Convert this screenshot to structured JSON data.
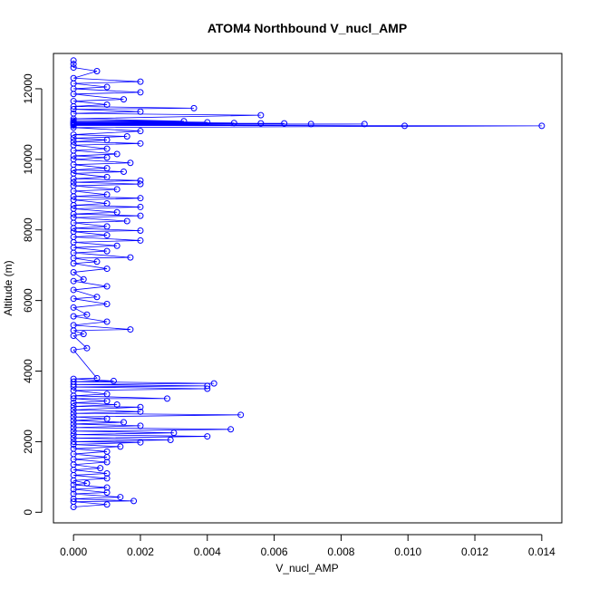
{
  "chart_data": {
    "type": "scatter",
    "title": "ATOM4 Northbound V_nucl_AMP",
    "xlabel": "V_nucl_AMP",
    "ylabel": "Altitude (m)",
    "xlim": [
      -0.0006,
      0.0146
    ],
    "ylim": [
      -300,
      13000
    ],
    "x_ticks": [
      0.0,
      0.002,
      0.004,
      0.006,
      0.008,
      0.01,
      0.012,
      0.014
    ],
    "x_tick_labels": [
      "0.000",
      "0.002",
      "0.004",
      "0.006",
      "0.008",
      "0.010",
      "0.012",
      "0.014"
    ],
    "y_ticks": [
      0,
      2000,
      4000,
      6000,
      8000,
      10000,
      12000
    ],
    "y_tick_labels": [
      "0",
      "2000",
      "4000",
      "6000",
      "8000",
      "10000",
      "12000"
    ],
    "grid": false,
    "legend": "none",
    "marker": "open-circle",
    "connected": true,
    "color": "#0000ff",
    "series": [
      {
        "points": [
          [
            0.0,
            150
          ],
          [
            0.001,
            220
          ],
          [
            0.0,
            300
          ],
          [
            0.0018,
            320
          ],
          [
            0.0,
            380
          ],
          [
            0.0014,
            430
          ],
          [
            0.0,
            520
          ],
          [
            0.001,
            560
          ],
          [
            0.0,
            650
          ],
          [
            0.001,
            700
          ],
          [
            0.0,
            780
          ],
          [
            0.0004,
            820
          ],
          [
            0.0,
            900
          ],
          [
            0.001,
            960
          ],
          [
            0.0,
            1050
          ],
          [
            0.001,
            1100
          ],
          [
            0.0,
            1200
          ],
          [
            0.0008,
            1250
          ],
          [
            0.0,
            1350
          ],
          [
            0.001,
            1420
          ],
          [
            0.0,
            1500
          ],
          [
            0.001,
            1560
          ],
          [
            0.0,
            1650
          ],
          [
            0.001,
            1720
          ],
          [
            0.0,
            1800
          ],
          [
            0.0014,
            1860
          ],
          [
            0.0,
            1920
          ],
          [
            0.002,
            1980
          ],
          [
            0.0,
            2000
          ],
          [
            0.0029,
            2050
          ],
          [
            0.0,
            2100
          ],
          [
            0.004,
            2150
          ],
          [
            0.0,
            2200
          ],
          [
            0.003,
            2250
          ],
          [
            0.0,
            2300
          ],
          [
            0.0047,
            2350
          ],
          [
            0.0,
            2400
          ],
          [
            0.002,
            2450
          ],
          [
            0.0,
            2500
          ],
          [
            0.0015,
            2550
          ],
          [
            0.0,
            2600
          ],
          [
            0.001,
            2650
          ],
          [
            0.0,
            2700
          ],
          [
            0.005,
            2760
          ],
          [
            0.0,
            2800
          ],
          [
            0.002,
            2850
          ],
          [
            0.0,
            2900
          ],
          [
            0.002,
            2980
          ],
          [
            0.0,
            3000
          ],
          [
            0.0013,
            3050
          ],
          [
            0.0,
            3100
          ],
          [
            0.001,
            3150
          ],
          [
            0.0,
            3220
          ],
          [
            0.0028,
            3220
          ],
          [
            0.0,
            3300
          ],
          [
            0.001,
            3350
          ],
          [
            0.0,
            3450
          ],
          [
            0.004,
            3500
          ],
          [
            0.0,
            3550
          ],
          [
            0.004,
            3580
          ],
          [
            0.0,
            3620
          ],
          [
            0.0042,
            3650
          ],
          [
            0.0,
            3700
          ],
          [
            0.0012,
            3720
          ],
          [
            0.0,
            3780
          ],
          [
            0.0007,
            3800
          ],
          [
            0.0,
            4600
          ],
          [
            0.0004,
            4650
          ],
          [
            0.0,
            5000
          ],
          [
            0.0003,
            5050
          ],
          [
            0.0,
            5150
          ],
          [
            0.0017,
            5180
          ],
          [
            0.0,
            5300
          ],
          [
            0.001,
            5400
          ],
          [
            0.0,
            5550
          ],
          [
            0.0004,
            5600
          ],
          [
            0.0,
            5800
          ],
          [
            0.001,
            5900
          ],
          [
            0.0,
            6050
          ],
          [
            0.0007,
            6100
          ],
          [
            0.0,
            6300
          ],
          [
            0.001,
            6400
          ],
          [
            0.0,
            6550
          ],
          [
            0.0003,
            6600
          ],
          [
            0.0,
            6800
          ],
          [
            0.001,
            6900
          ],
          [
            0.0,
            7050
          ],
          [
            0.0007,
            7100
          ],
          [
            0.0,
            7200
          ],
          [
            0.0017,
            7220
          ],
          [
            0.0,
            7350
          ],
          [
            0.001,
            7400
          ],
          [
            0.0,
            7500
          ],
          [
            0.0013,
            7550
          ],
          [
            0.0,
            7650
          ],
          [
            0.002,
            7700
          ],
          [
            0.0,
            7800
          ],
          [
            0.001,
            7850
          ],
          [
            0.0,
            7950
          ],
          [
            0.002,
            7980
          ],
          [
            0.0,
            8050
          ],
          [
            0.001,
            8100
          ],
          [
            0.0,
            8200
          ],
          [
            0.0016,
            8250
          ],
          [
            0.0,
            8350
          ],
          [
            0.002,
            8400
          ],
          [
            0.0,
            8450
          ],
          [
            0.0013,
            8500
          ],
          [
            0.0,
            8600
          ],
          [
            0.002,
            8650
          ],
          [
            0.0,
            8700
          ],
          [
            0.001,
            8750
          ],
          [
            0.0,
            8850
          ],
          [
            0.002,
            8900
          ],
          [
            0.0,
            8950
          ],
          [
            0.001,
            9000
          ],
          [
            0.0,
            9100
          ],
          [
            0.0013,
            9150
          ],
          [
            0.0,
            9250
          ],
          [
            0.002,
            9300
          ],
          [
            0.0,
            9350
          ],
          [
            0.002,
            9400
          ],
          [
            0.0,
            9450
          ],
          [
            0.001,
            9500
          ],
          [
            0.0,
            9600
          ],
          [
            0.0015,
            9650
          ],
          [
            0.0,
            9700
          ],
          [
            0.001,
            9750
          ],
          [
            0.0,
            9850
          ],
          [
            0.0017,
            9900
          ],
          [
            0.0,
            10000
          ],
          [
            0.001,
            10050
          ],
          [
            0.0,
            10100
          ],
          [
            0.0013,
            10150
          ],
          [
            0.0,
            10250
          ],
          [
            0.001,
            10300
          ],
          [
            0.0,
            10400
          ],
          [
            0.002,
            10450
          ],
          [
            0.0,
            10500
          ],
          [
            0.001,
            10550
          ],
          [
            0.0,
            10600
          ],
          [
            0.0016,
            10650
          ],
          [
            0.0,
            10700
          ],
          [
            0.002,
            10800
          ],
          [
            0.0,
            10900
          ],
          [
            0.014,
            10950
          ],
          [
            0.0,
            10960
          ],
          [
            0.0099,
            10950
          ],
          [
            0.0,
            10980
          ],
          [
            0.0087,
            11000
          ],
          [
            0.0,
            11000
          ],
          [
            0.0071,
            11000
          ],
          [
            0.0,
            11010
          ],
          [
            0.0063,
            11020
          ],
          [
            0.0,
            11030
          ],
          [
            0.0056,
            11020
          ],
          [
            0.0,
            11040
          ],
          [
            0.0048,
            11030
          ],
          [
            0.0,
            11060
          ],
          [
            0.004,
            11050
          ],
          [
            0.0,
            11100
          ],
          [
            0.0033,
            11080
          ],
          [
            0.0,
            11150
          ],
          [
            0.0056,
            11250
          ],
          [
            0.0,
            11300
          ],
          [
            0.002,
            11350
          ],
          [
            0.0,
            11420
          ],
          [
            0.0036,
            11450
          ],
          [
            0.0,
            11500
          ],
          [
            0.001,
            11550
          ],
          [
            0.0,
            11650
          ],
          [
            0.0015,
            11700
          ],
          [
            0.0,
            11850
          ],
          [
            0.002,
            11900
          ],
          [
            0.0,
            12000
          ],
          [
            0.001,
            12050
          ],
          [
            0.0,
            12150
          ],
          [
            0.002,
            12200
          ],
          [
            0.0,
            12300
          ],
          [
            0.0007,
            12500
          ],
          [
            0.0,
            12600
          ],
          [
            0.0,
            12700
          ],
          [
            0.0,
            12800
          ]
        ]
      }
    ]
  }
}
